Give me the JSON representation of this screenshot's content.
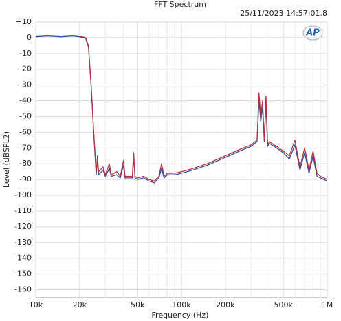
{
  "chart_data": {
    "type": "line",
    "title": "FFT Spectrum",
    "timestamp": "25/11/2023 14:57:01.8",
    "logo": "AP",
    "x_label": "Frequency (Hz)",
    "y_label": "Level (dBSPL2)",
    "xlog": true,
    "grid": true,
    "xlim": [
      10000,
      1000000
    ],
    "ylim": [
      -165,
      10
    ],
    "xticks": [
      {
        "value": 10000,
        "label": "10k"
      },
      {
        "value": 20000,
        "label": "20k"
      },
      {
        "value": 50000,
        "label": "50k"
      },
      {
        "value": 100000,
        "label": "100k"
      },
      {
        "value": 200000,
        "label": "200k"
      },
      {
        "value": 500000,
        "label": "500k"
      },
      {
        "value": 1000000,
        "label": "1M"
      }
    ],
    "xminorticks": [
      30000,
      40000,
      60000,
      70000,
      80000,
      90000,
      300000,
      400000,
      600000,
      700000,
      800000,
      900000
    ],
    "yticks": [
      {
        "value": 10,
        "label": "+10"
      },
      0,
      -10,
      -20,
      -30,
      -40,
      -50,
      -60,
      -70,
      -80,
      -90,
      -100,
      -110,
      -120,
      -130,
      -140,
      -150,
      -160
    ],
    "x": [
      10000,
      12000,
      15000,
      18000,
      20000,
      22000,
      23000,
      24000,
      25000,
      26000,
      26500,
      27000,
      29000,
      30000,
      32000,
      33000,
      36000,
      38000,
      40000,
      41000,
      45000,
      46000,
      47000,
      48000,
      50000,
      55000,
      60000,
      65000,
      70000,
      73000,
      76000,
      80000,
      90000,
      100000,
      120000,
      150000,
      200000,
      250000,
      300000,
      330000,
      340000,
      350000,
      360000,
      370000,
      380000,
      390000,
      400000,
      450000,
      500000,
      550000,
      600000,
      650000,
      700000,
      750000,
      800000,
      850000,
      900000,
      1000000
    ],
    "series": [
      {
        "color": "#3a4a9c",
        "values": [
          0.5,
          1,
          0.5,
          1,
          0.5,
          -0.5,
          -6,
          -31,
          -61,
          -87,
          -78,
          -87,
          -84,
          -88,
          -83,
          -88,
          -87,
          -89,
          -81,
          -89,
          -89,
          -89,
          -76,
          -89,
          -90,
          -89,
          -91,
          -92,
          -89,
          -83,
          -89,
          -87,
          -87,
          -86,
          -84,
          -81,
          -76,
          -72,
          -69,
          -66,
          -40,
          -53,
          -44,
          -66,
          -42,
          -69,
          -67,
          -70,
          -73,
          -77,
          -68,
          -84,
          -73,
          -86,
          -75,
          -88,
          -89,
          -91
        ]
      },
      {
        "color": "#b8323f",
        "values": [
          1,
          1.5,
          1,
          1.5,
          1,
          0,
          -5,
          -30,
          -60,
          -85,
          -75,
          -85,
          -82,
          -87,
          -80,
          -87,
          -85,
          -88,
          -78,
          -88,
          -88,
          -88,
          -73,
          -88,
          -89,
          -88,
          -90,
          -91,
          -88,
          -80,
          -88,
          -86,
          -86,
          -85,
          -83,
          -80,
          -75,
          -71,
          -68,
          -65,
          -35,
          -50,
          -40,
          -65,
          -37,
          -68,
          -66,
          -69,
          -72,
          -75,
          -65,
          -82,
          -70,
          -84,
          -72,
          -86,
          -88,
          -90
        ]
      }
    ]
  }
}
